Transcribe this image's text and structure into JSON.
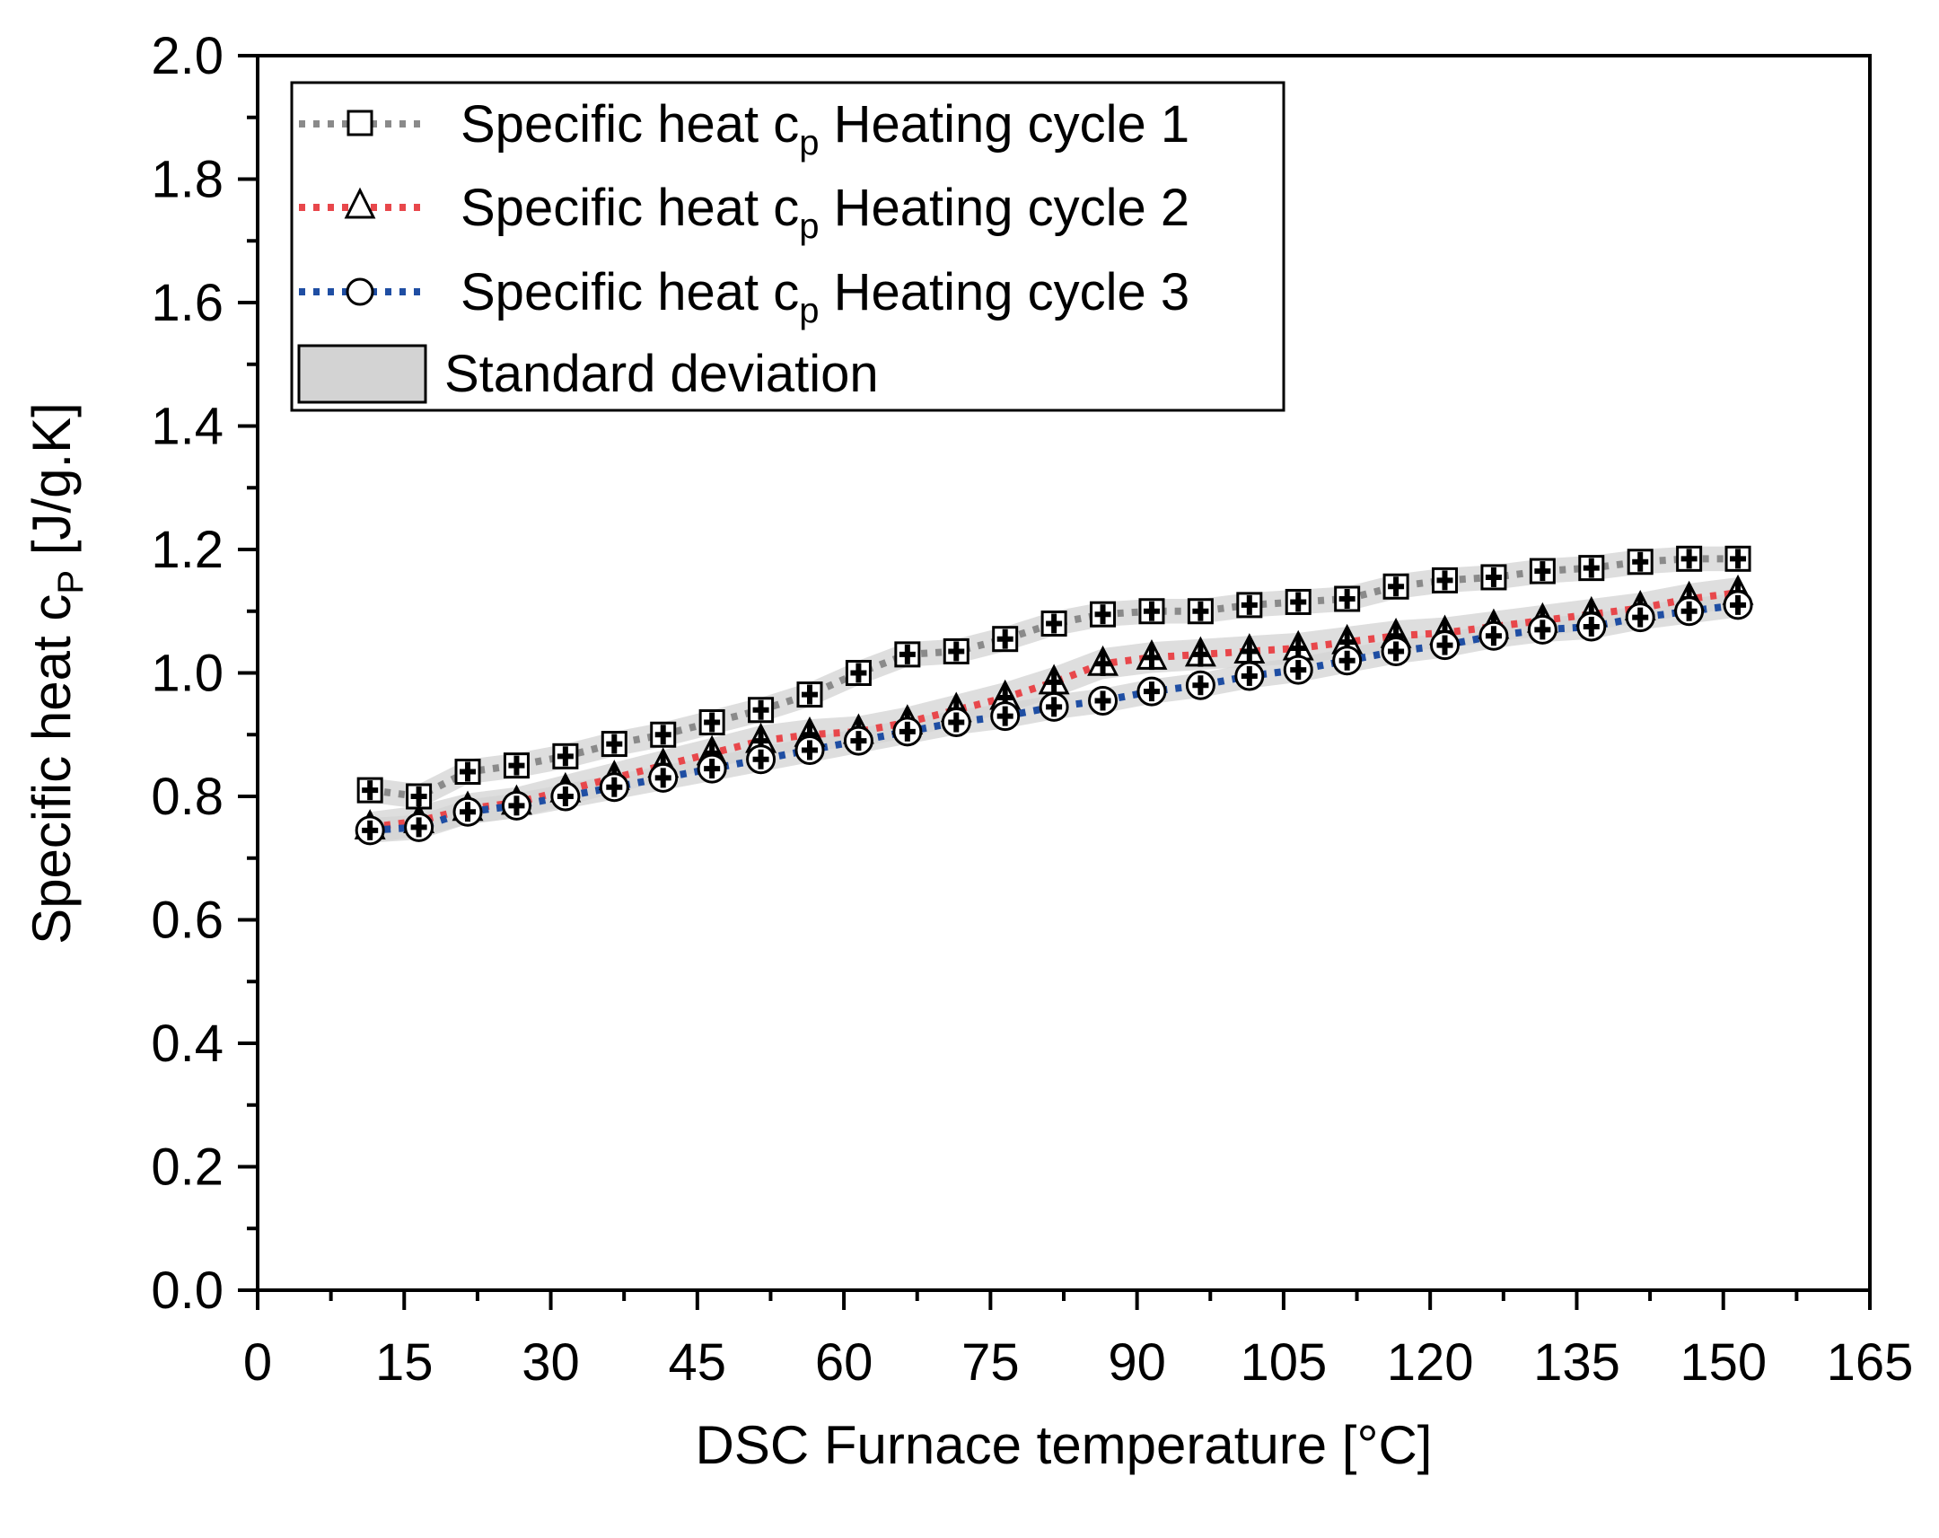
{
  "chart_data": {
    "type": "scatter",
    "title": "",
    "xlabel": "DSC Furnace temperature [°C]",
    "ylabel_main": "Specific heat c",
    "ylabel_sub": "P",
    "ylabel_unit": " [J/g.K]",
    "xlim": [
      0,
      165
    ],
    "ylim": [
      0.0,
      2.0
    ],
    "xticks": [
      0,
      15,
      30,
      45,
      60,
      75,
      90,
      105,
      120,
      135,
      150,
      165
    ],
    "xtick_labels": [
      "0",
      "15",
      "30",
      "45",
      "60",
      "75",
      "90",
      "105",
      "120",
      "135",
      "150",
      "165"
    ],
    "yticks": [
      0.0,
      0.2,
      0.4,
      0.6,
      0.8,
      1.0,
      1.2,
      1.4,
      1.6,
      1.8,
      2.0
    ],
    "ytick_labels": [
      "0.0",
      "0.2",
      "0.4",
      "0.6",
      "0.8",
      "1.0",
      "1.2",
      "1.4",
      "1.6",
      "1.8",
      "2.0"
    ],
    "grid": false,
    "legend_position": "top-left",
    "x": [
      11.5,
      16.5,
      21.5,
      26.5,
      31.5,
      36.5,
      41.5,
      46.5,
      51.5,
      56.5,
      61.5,
      66.5,
      71.5,
      76.5,
      81.5,
      86.5,
      91.5,
      96.5,
      101.5,
      106.5,
      111.5,
      116.5,
      121.5,
      126.5,
      131.5,
      136.5,
      141.5,
      146.5,
      151.5
    ],
    "series": [
      {
        "name_main": "Specific heat c",
        "name_sub": "p",
        "name_rest": " Heating cycle 1",
        "marker": "square",
        "line_color": "#8a8a8a",
        "values": [
          0.81,
          0.8,
          0.84,
          0.85,
          0.865,
          0.885,
          0.9,
          0.92,
          0.94,
          0.965,
          1.0,
          1.03,
          1.035,
          1.055,
          1.08,
          1.095,
          1.1,
          1.1,
          1.11,
          1.115,
          1.12,
          1.14,
          1.15,
          1.155,
          1.165,
          1.17,
          1.18,
          1.185,
          1.185
        ],
        "std": [
          0.02,
          0.02,
          0.02,
          0.02,
          0.02,
          0.02,
          0.02,
          0.02,
          0.02,
          0.02,
          0.02,
          0.02,
          0.02,
          0.02,
          0.02,
          0.02,
          0.02,
          0.02,
          0.02,
          0.02,
          0.02,
          0.02,
          0.02,
          0.02,
          0.02,
          0.02,
          0.02,
          0.02,
          0.02
        ]
      },
      {
        "name_main": "Specific heat c",
        "name_sub": "p",
        "name_rest": " Heating cycle 2",
        "marker": "triangle",
        "line_color": "#e8474b",
        "values": [
          0.75,
          0.76,
          0.78,
          0.79,
          0.81,
          0.83,
          0.85,
          0.87,
          0.89,
          0.9,
          0.905,
          0.92,
          0.94,
          0.96,
          0.985,
          1.015,
          1.025,
          1.03,
          1.035,
          1.04,
          1.05,
          1.06,
          1.065,
          1.075,
          1.085,
          1.095,
          1.105,
          1.12,
          1.13
        ],
        "std": [
          0.025,
          0.025,
          0.025,
          0.025,
          0.025,
          0.025,
          0.025,
          0.025,
          0.025,
          0.025,
          0.025,
          0.025,
          0.025,
          0.025,
          0.025,
          0.025,
          0.025,
          0.025,
          0.025,
          0.025,
          0.025,
          0.025,
          0.025,
          0.025,
          0.025,
          0.025,
          0.025,
          0.025,
          0.025
        ]
      },
      {
        "name_main": "Specific heat c",
        "name_sub": "p",
        "name_rest": " Heating cycle 3",
        "marker": "circle",
        "line_color": "#1f4ea3",
        "values": [
          0.745,
          0.75,
          0.775,
          0.785,
          0.8,
          0.815,
          0.83,
          0.845,
          0.86,
          0.875,
          0.89,
          0.905,
          0.92,
          0.93,
          0.945,
          0.955,
          0.97,
          0.98,
          0.995,
          1.005,
          1.02,
          1.035,
          1.045,
          1.06,
          1.07,
          1.075,
          1.09,
          1.1,
          1.11
        ],
        "std": [
          0.02,
          0.02,
          0.02,
          0.02,
          0.02,
          0.02,
          0.02,
          0.02,
          0.02,
          0.02,
          0.02,
          0.02,
          0.02,
          0.02,
          0.02,
          0.02,
          0.02,
          0.02,
          0.02,
          0.02,
          0.02,
          0.02,
          0.02,
          0.02,
          0.02,
          0.02,
          0.02,
          0.02,
          0.02
        ]
      }
    ],
    "band_label": "Standard deviation",
    "band_color": "#d3d3d3"
  }
}
